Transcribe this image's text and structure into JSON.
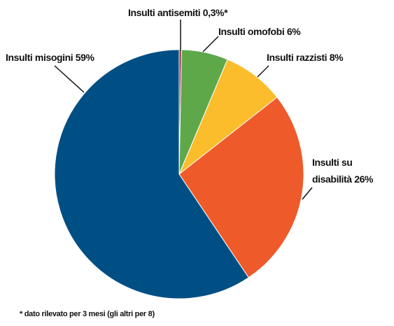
{
  "chart_data": {
    "type": "pie",
    "categories": [
      "Insulti antisemiti",
      "Insulti omofobi",
      "Insulti razzisti",
      "Insulti su disabilità",
      "Insulti misogini"
    ],
    "values": [
      0.3,
      6,
      8,
      26,
      59
    ],
    "value_labels": [
      "0,3%*",
      "6%",
      "8%",
      "26%",
      "59%"
    ],
    "colors": [
      "#a3243b",
      "#5ea84a",
      "#fbbd2b",
      "#ef5a2b",
      "#004f84"
    ],
    "note": "* dato rilevato per 3 mesi (gli altri per 8)"
  }
}
